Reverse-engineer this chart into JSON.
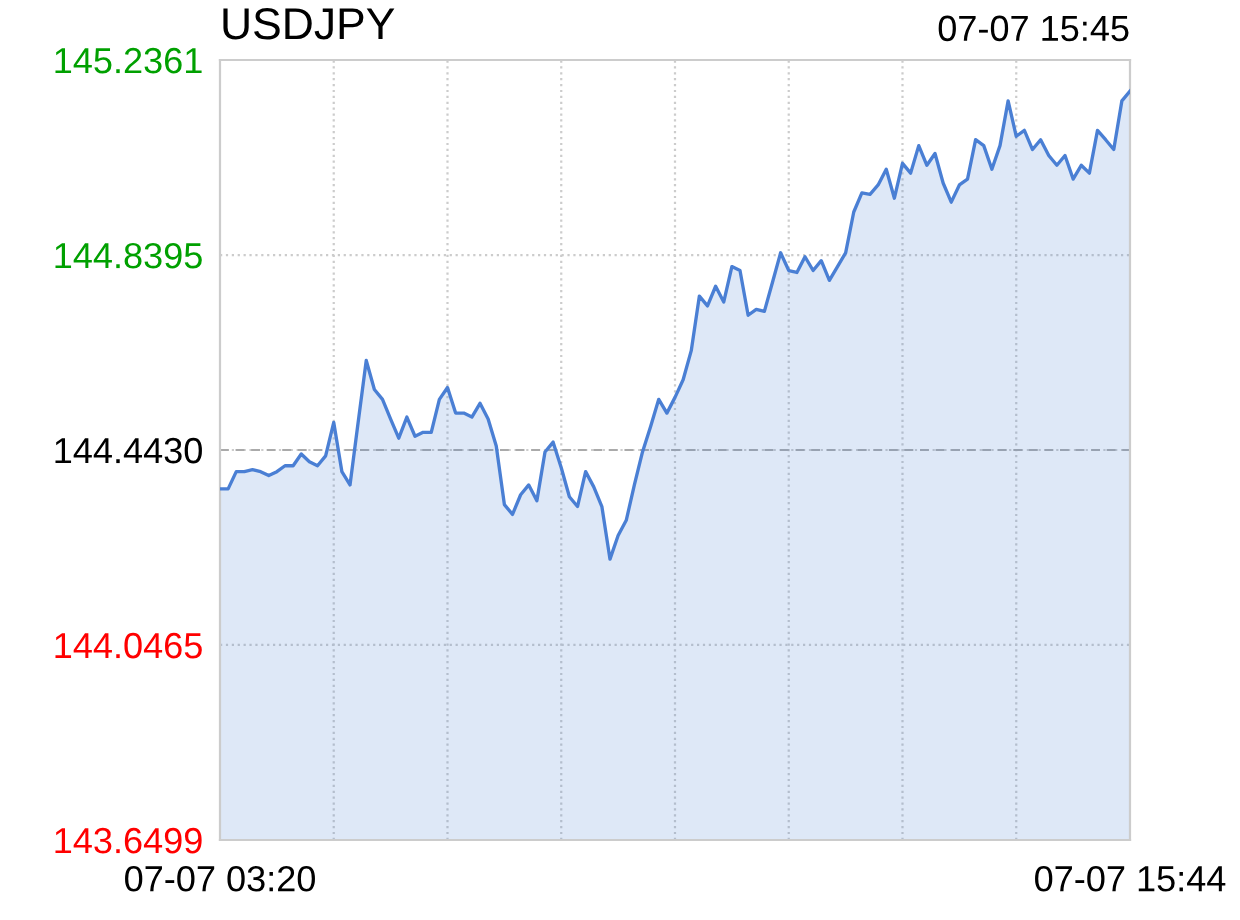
{
  "chart_data": {
    "type": "area",
    "title": "USDJPY",
    "annotations": [
      "07-07 15:45"
    ],
    "categories": [
      "07-07 03:20",
      null,
      null,
      null,
      null,
      null,
      null,
      null,
      null,
      null,
      null,
      null,
      null,
      null,
      null,
      null,
      null,
      null,
      null,
      null,
      null,
      null,
      null,
      null,
      null,
      null,
      null,
      null,
      null,
      null,
      null,
      null,
      null,
      null,
      null,
      null,
      null,
      null,
      null,
      null,
      null,
      null,
      null,
      null,
      null,
      null,
      null,
      null,
      null,
      null,
      null,
      null,
      null,
      null,
      null,
      null,
      null,
      null,
      null,
      null,
      null,
      null,
      null,
      null,
      null,
      null,
      null,
      null,
      null,
      null,
      null,
      null,
      null,
      null,
      null,
      null,
      null,
      null,
      null,
      null,
      null,
      null,
      null,
      null,
      null,
      null,
      null,
      null,
      null,
      null,
      null,
      null,
      null,
      null,
      null,
      null,
      null,
      null,
      null,
      null,
      null,
      null,
      null,
      null,
      null,
      null,
      null,
      null,
      null,
      null,
      null,
      null,
      "07-07 15:44"
    ],
    "series": [
      {
        "color": "#4a7fd4",
        "values": [
          144.364,
          144.364,
          144.399,
          144.399,
          144.403,
          144.399,
          144.391,
          144.399,
          144.411,
          144.411,
          144.435,
          144.419,
          144.411,
          144.431,
          144.499,
          144.399,
          144.372,
          144.499,
          144.625,
          144.566,
          144.546,
          144.506,
          144.467,
          144.51,
          144.471,
          144.479,
          144.479,
          144.546,
          144.57,
          144.518,
          144.518,
          144.51,
          144.538,
          144.506,
          144.451,
          144.332,
          144.312,
          144.352,
          144.372,
          144.34,
          144.439,
          144.459,
          144.407,
          144.348,
          144.328,
          144.399,
          144.368,
          144.328,
          144.221,
          144.269,
          144.3,
          144.372,
          144.439,
          144.491,
          144.546,
          144.518,
          144.55,
          144.586,
          144.645,
          144.756,
          144.736,
          144.776,
          144.744,
          144.816,
          144.808,
          144.717,
          144.729,
          144.725,
          144.784,
          144.844,
          144.808,
          144.804,
          144.836,
          144.808,
          144.828,
          144.788,
          144.816,
          144.844,
          144.927,
          144.966,
          144.963,
          144.982,
          145.014,
          144.955,
          145.026,
          145.006,
          145.062,
          145.022,
          145.046,
          144.986,
          144.947,
          144.982,
          144.994,
          145.074,
          145.062,
          145.014,
          145.062,
          145.153,
          145.081,
          145.093,
          145.054,
          145.074,
          145.042,
          145.022,
          145.042,
          144.994,
          145.022,
          145.006,
          145.093,
          145.074,
          145.054,
          145.153,
          145.173
        ]
      }
    ],
    "ylim": [
      143.6499,
      145.2361
    ],
    "yticks": [
      145.2361,
      144.8395,
      {
        "value": 144.443,
        "label": "144.4430"
      },
      144.0465,
      143.6499
    ],
    "ref_lines": [
      {
        "axis": "y",
        "value": 144.443,
        "color": "#aaaaaa",
        "line_style": "dashed"
      }
    ],
    "grid": true
  }
}
